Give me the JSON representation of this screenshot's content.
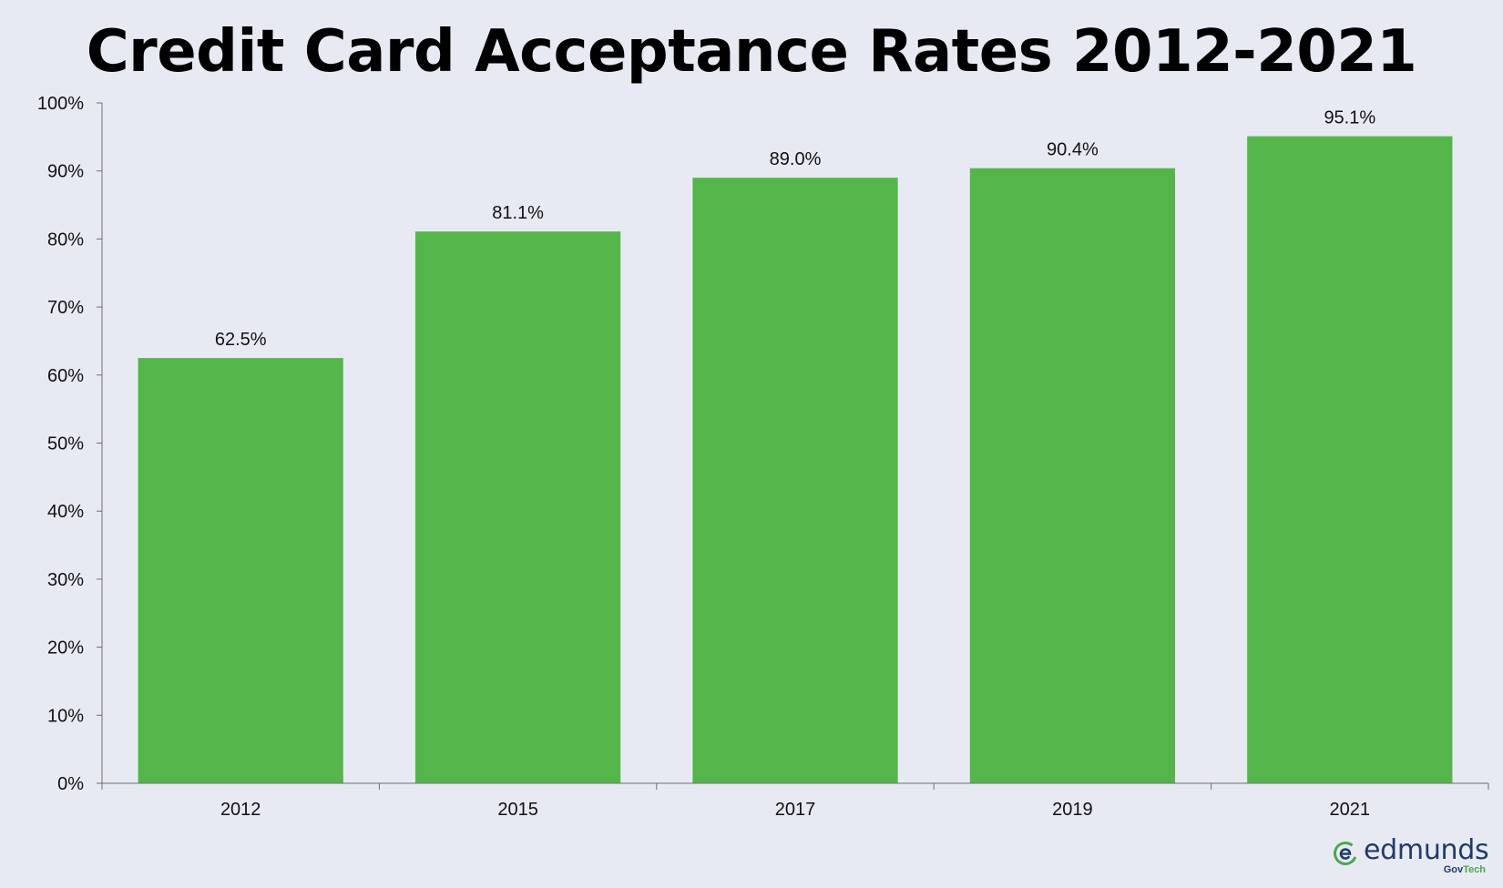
{
  "title": "Credit Card Acceptance Rates 2012-2021",
  "colors": {
    "background": "#e8eaf3",
    "bar": "#54b64a",
    "axis": "#6e6e6e",
    "logo_text": "#1f3b6e",
    "logo_accent": "#4aa84a"
  },
  "chart_data": {
    "type": "bar",
    "title": "Credit Card Acceptance Rates 2012-2021",
    "categories": [
      "2012",
      "2015",
      "2017",
      "2019",
      "2021"
    ],
    "values": [
      62.5,
      81.1,
      89.0,
      90.4,
      95.1
    ],
    "data_labels": [
      "62.5%",
      "81.1%",
      "89.0%",
      "90.4%",
      "95.1%"
    ],
    "xlabel": "",
    "ylabel": "",
    "ylim": [
      0,
      100
    ],
    "yticks": [
      0,
      10,
      20,
      30,
      40,
      50,
      60,
      70,
      80,
      90,
      100
    ],
    "ytick_labels": [
      "0%",
      "10%",
      "20%",
      "30%",
      "40%",
      "50%",
      "60%",
      "70%",
      "80%",
      "90%",
      "100%"
    ],
    "grid": false,
    "legend": "none"
  },
  "logo": {
    "icon": "edmunds-e-icon",
    "word": "edmunds",
    "sub_primary": "Gov",
    "sub_accent": "Tech"
  }
}
